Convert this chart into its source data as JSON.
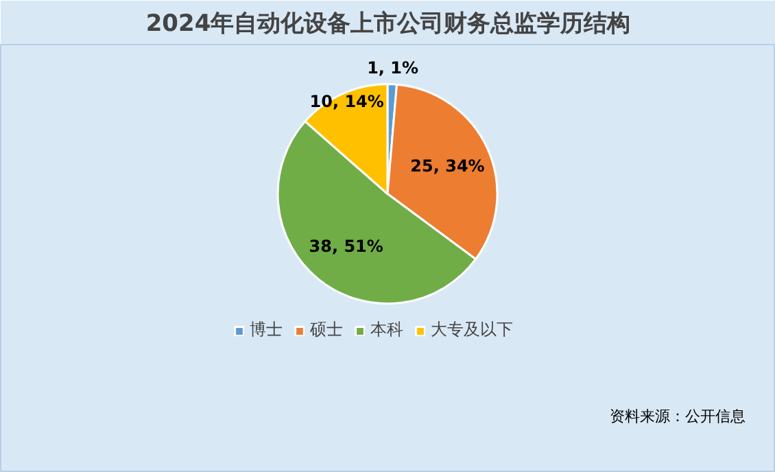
{
  "chart_data": {
    "type": "pie",
    "title": "2024年自动化设备上市公司财务总监学历结构",
    "categories": [
      "博士",
      "硕士",
      "本科",
      "大专及以下"
    ],
    "values": [
      1,
      25,
      38,
      10
    ],
    "colors": [
      "#5b9bd5",
      "#ed7d31",
      "#70ad47",
      "#ffc000"
    ],
    "value_labels": [
      "1, 1%",
      "25, 34%",
      "38, 51%",
      "10, 14%"
    ],
    "legend": "bottom",
    "annotations": [
      "资料来源：公开信息"
    ]
  }
}
